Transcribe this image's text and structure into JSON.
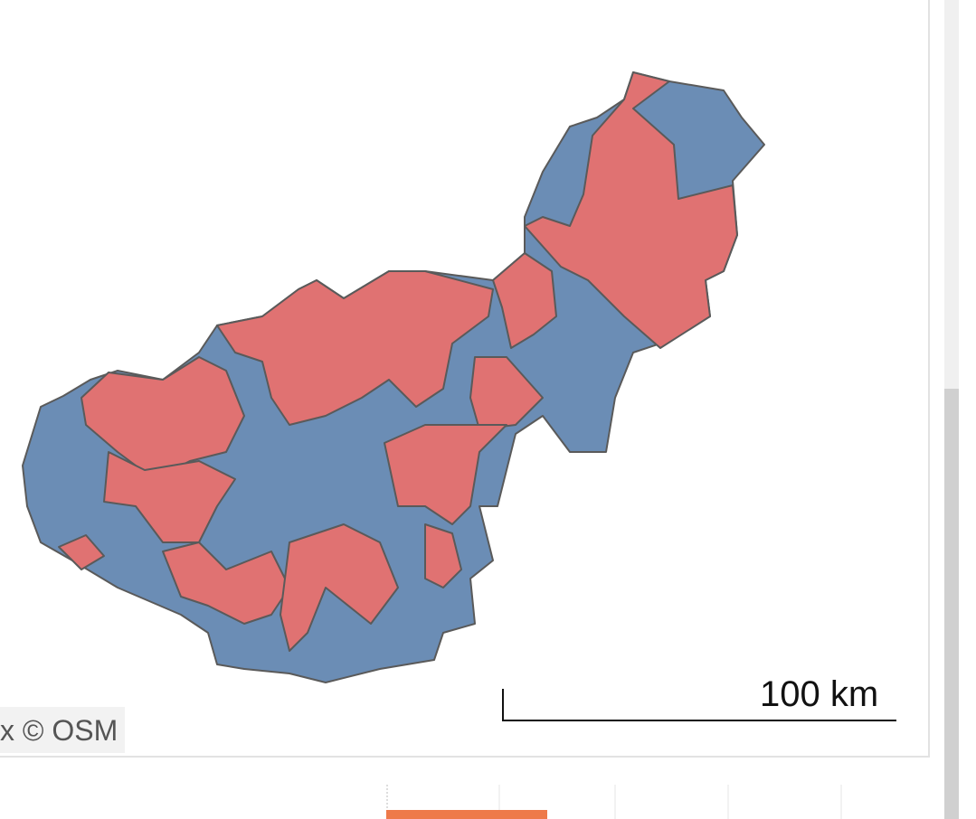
{
  "map": {
    "attribution": "x  © OSM",
    "scale_label": "100 km"
  }
}
